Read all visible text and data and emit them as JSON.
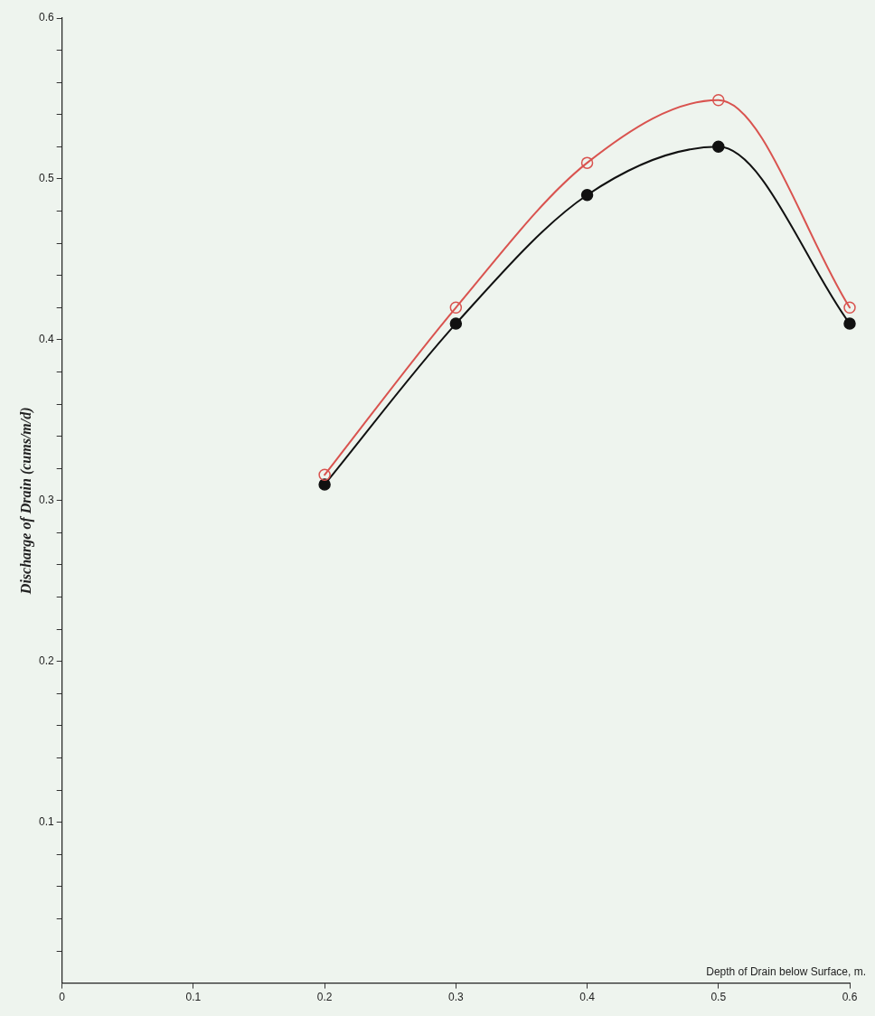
{
  "chart_data": {
    "type": "line",
    "xlabel": "Depth of Drain below Surface, m.",
    "ylabel": "Discharge of Drain (cums/m/d)",
    "x": [
      0.2,
      0.3,
      0.4,
      0.5,
      0.6
    ],
    "series": [
      {
        "color": "#d9534f",
        "values": [
          0.316,
          0.42,
          0.51,
          0.549,
          0.42
        ]
      },
      {
        "color": "#111111",
        "values": [
          0.31,
          0.41,
          0.49,
          0.52,
          0.41
        ]
      }
    ],
    "xlim": [
      0,
      0.6
    ],
    "ylim": [
      0,
      0.6
    ],
    "xticks": [
      0,
      0.1,
      0.2,
      0.3,
      0.4,
      0.5,
      0.6
    ],
    "yticks": [
      {
        "value": 0.02,
        "label": null
      },
      {
        "value": 0.04,
        "label": null
      },
      {
        "value": 0.06,
        "label": null
      },
      {
        "value": 0.08,
        "label": null
      },
      0.1,
      {
        "value": 0.12,
        "label": null
      },
      {
        "value": 0.14,
        "label": null
      },
      {
        "value": 0.16,
        "label": null
      },
      {
        "value": 0.18,
        "label": null
      },
      0.2,
      {
        "value": 0.22,
        "label": null
      },
      {
        "value": 0.24,
        "label": null
      },
      {
        "value": 0.26,
        "label": null
      },
      {
        "value": 0.28,
        "label": null
      },
      0.3,
      {
        "value": 0.32,
        "label": null
      },
      {
        "value": 0.34,
        "label": null
      },
      {
        "value": 0.36,
        "label": null
      },
      {
        "value": 0.38,
        "label": null
      },
      0.4,
      {
        "value": 0.42,
        "label": null
      },
      {
        "value": 0.44,
        "label": null
      },
      {
        "value": 0.46,
        "label": null
      },
      {
        "value": 0.48,
        "label": null
      },
      0.5,
      {
        "value": 0.52,
        "label": null
      },
      {
        "value": 0.54,
        "label": null
      },
      {
        "value": 0.56,
        "label": null
      },
      {
        "value": 0.58,
        "label": null
      },
      0.6
    ],
    "grid": false,
    "legend": false,
    "marker": "circle",
    "line_style": "solid"
  }
}
